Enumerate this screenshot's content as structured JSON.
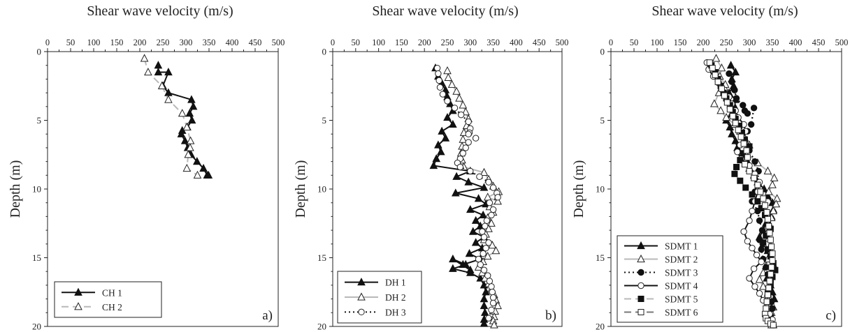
{
  "chart_data": [
    {
      "type": "line",
      "panel_label": "a)",
      "title": "Shear wave velocity (m/s)",
      "xlabel": "Shear wave velocity (m/s)",
      "ylabel": "Depth (m)",
      "xlim": [
        0,
        500
      ],
      "ylim": [
        0,
        20
      ],
      "y_inverted": true,
      "x_axis_position": "top",
      "xticks": [
        "0",
        "50",
        "100",
        "150",
        "200",
        "250",
        "300",
        "350",
        "400",
        "450",
        "500"
      ],
      "yticks": [
        "0",
        "5",
        "10",
        "15",
        "20"
      ],
      "legend_position": "bottom-left",
      "series": [
        {
          "name": "CH 1",
          "color": "#111111",
          "dash": "",
          "marker": "triangle-filled",
          "x": [
            240,
            240,
            262,
            250,
            262,
            312,
            316,
            308,
            313,
            303,
            292,
            290,
            298,
            304,
            311,
            324,
            338,
            346,
            349
          ],
          "y": [
            1.0,
            1.5,
            1.5,
            2.5,
            3.0,
            3.5,
            4.0,
            4.5,
            5.0,
            5.5,
            5.75,
            6.0,
            6.5,
            7.0,
            7.5,
            8.0,
            8.5,
            9.0,
            9.0
          ]
        },
        {
          "name": "CH 2",
          "color": "#b8b8b8",
          "dash": "10,6",
          "marker": "triangle-open",
          "x": [
            210,
            218,
            248,
            262,
            292,
            302,
            310,
            309,
            305,
            302,
            325
          ],
          "y": [
            0.5,
            1.5,
            2.5,
            3.5,
            4.5,
            5.5,
            6.5,
            7.0,
            7.5,
            8.5,
            9.0
          ]
        }
      ]
    },
    {
      "type": "line",
      "panel_label": "b)",
      "title": "Shear wave velocity (m/s)",
      "xlabel": "Shear wave velocity (m/s)",
      "ylabel": "Depth (m)",
      "xlim": [
        0,
        500
      ],
      "ylim": [
        0,
        20
      ],
      "y_inverted": true,
      "x_axis_position": "top",
      "xticks": [
        "0",
        "50",
        "100",
        "150",
        "200",
        "250",
        "300",
        "350",
        "400",
        "450",
        "500"
      ],
      "yticks": [
        "0",
        "5",
        "10",
        "15",
        "20"
      ],
      "legend_position": "bottom-left",
      "series": [
        {
          "name": "DH 1",
          "color": "#111111",
          "dash": "",
          "marker": "triangle-filled",
          "x": [
            224,
            230,
            238,
            246,
            250,
            256,
            262,
            250,
            262,
            238,
            246,
            230,
            236,
            226,
            220,
            300,
            270,
            296,
            330,
            268,
            318,
            334,
            300,
            328,
            312,
            322,
            306,
            330,
            312,
            326,
            298,
            322,
            284,
            300,
            262,
            290,
            262,
            300,
            322,
            330,
            334,
            330,
            330,
            332,
            330,
            330
          ],
          "y": [
            1.2,
            1.8,
            2.3,
            2.8,
            3.3,
            3.8,
            4.3,
            4.8,
            5.3,
            5.8,
            6.3,
            6.8,
            7.3,
            7.8,
            8.3,
            8.7,
            9.1,
            9.5,
            9.9,
            10.3,
            10.7,
            11.1,
            11.5,
            11.9,
            12.3,
            12.7,
            13.1,
            13.5,
            13.9,
            14.3,
            14.7,
            15.1,
            15.5,
            15.9,
            15.1,
            15.5,
            15.8,
            16.1,
            16.5,
            17.0,
            17.5,
            18.0,
            18.5,
            19.0,
            19.5,
            19.8
          ]
        },
        {
          "name": "DH 2",
          "color": "#b8b8b8",
          "dash": "",
          "marker": "triangle-open",
          "x": [
            250,
            252,
            260,
            270,
            276,
            284,
            290,
            296,
            292,
            286,
            284,
            282,
            280,
            282,
            286,
            330,
            340,
            350,
            362,
            338,
            360,
            342,
            350,
            338,
            346,
            340,
            334,
            330,
            348,
            356,
            338,
            328,
            318,
            326,
            332,
            340,
            346,
            352,
            356,
            360,
            354,
            352,
            350,
            352
          ],
          "y": [
            1.4,
            1.9,
            2.4,
            2.9,
            3.4,
            3.9,
            4.4,
            4.9,
            5.4,
            5.9,
            6.4,
            6.9,
            7.4,
            7.9,
            8.4,
            8.8,
            9.3,
            9.8,
            10.2,
            10.6,
            10.9,
            11.3,
            11.7,
            12.1,
            12.5,
            12.9,
            13.3,
            13.7,
            14.1,
            14.5,
            14.9,
            15.3,
            15.7,
            16.1,
            16.5,
            16.9,
            17.3,
            17.7,
            18.1,
            18.5,
            18.9,
            19.3,
            19.6,
            19.9
          ]
        },
        {
          "name": "DH 3",
          "color": "#111111",
          "dash": "2,4",
          "marker": "circle-open",
          "x": [
            228,
            230,
            232,
            234,
            240,
            250,
            266,
            280,
            296,
            300,
            298,
            296,
            312,
            296,
            290,
            284,
            278,
            272,
            278,
            300,
            320,
            340,
            350,
            358,
            360,
            342,
            350,
            346,
            336,
            332,
            326,
            330,
            340,
            334,
            328,
            318,
            322,
            330,
            338,
            342,
            346,
            348,
            350,
            350,
            346,
            340
          ],
          "y": [
            1.2,
            1.6,
            2.1,
            2.6,
            3.1,
            3.6,
            4.1,
            4.6,
            5.1,
            5.6,
            5.9,
            6.0,
            6.3,
            6.6,
            7.0,
            7.4,
            7.8,
            8.1,
            8.4,
            8.7,
            9.1,
            9.5,
            9.9,
            10.3,
            10.6,
            11.0,
            11.5,
            11.9,
            12.3,
            12.7,
            13.1,
            13.5,
            13.9,
            14.3,
            14.7,
            15.1,
            15.5,
            15.9,
            16.3,
            16.7,
            17.1,
            17.5,
            17.9,
            18.3,
            18.8,
            19.4
          ]
        }
      ]
    },
    {
      "type": "line",
      "panel_label": "c)",
      "title": "Shear wave velocity (m/s)",
      "xlabel": "Shear wave velocity (m/s)",
      "ylabel": "Depth (m)",
      "xlim": [
        0,
        500
      ],
      "ylim": [
        0,
        20
      ],
      "y_inverted": true,
      "x_axis_position": "top",
      "xticks": [
        "0",
        "50",
        "100",
        "150",
        "200",
        "250",
        "300",
        "350",
        "400",
        "450",
        "500"
      ],
      "yticks": [
        "0",
        "5",
        "10",
        "15",
        "20"
      ],
      "legend_position": "bottom-left",
      "series": [
        {
          "name": "SDMT 1",
          "color": "#111111",
          "dash": "",
          "marker": "triangle-filled",
          "x": [
            260,
            270,
            262,
            266,
            256,
            270,
            268,
            262,
            250,
            258,
            262,
            270,
            274,
            290,
            296,
            300,
            310,
            318,
            332,
            340,
            350,
            352,
            348,
            336,
            330,
            322,
            330,
            340,
            346,
            352,
            348,
            338,
            346,
            350,
            354,
            350,
            346,
            348,
            350,
            352
          ],
          "y": [
            1.0,
            1.5,
            2.0,
            2.5,
            3.0,
            3.5,
            4.0,
            4.5,
            5.0,
            5.5,
            6.0,
            6.5,
            7.0,
            7.5,
            8.0,
            8.5,
            9.0,
            9.5,
            10.0,
            10.5,
            11.0,
            11.5,
            12.0,
            12.5,
            13.0,
            13.5,
            14.0,
            14.5,
            15.0,
            15.5,
            16.0,
            16.5,
            17.0,
            17.5,
            18.0,
            18.5,
            19.0,
            19.5,
            19.8,
            19.9
          ]
        },
        {
          "name": "SDMT 2",
          "color": "#b8b8b8",
          "dash": "",
          "marker": "triangle-open",
          "x": [
            228,
            240,
            236,
            248,
            234,
            224,
            238,
            250,
            268,
            280,
            290,
            300,
            290,
            318,
            340,
            354,
            350,
            342,
            360,
            358,
            352,
            348,
            344,
            340,
            342,
            346,
            348,
            340,
            336,
            330,
            322,
            330,
            340,
            346,
            352,
            348,
            346,
            350,
            348
          ],
          "y": [
            0.5,
            1.2,
            1.8,
            2.4,
            3.0,
            3.8,
            4.3,
            4.8,
            5.3,
            5.8,
            6.3,
            6.8,
            7.3,
            8.1,
            8.7,
            9.2,
            9.7,
            10.2,
            10.7,
            11.1,
            11.6,
            12.1,
            12.6,
            13.1,
            13.6,
            14.1,
            14.6,
            15.1,
            15.6,
            16.1,
            16.6,
            17.1,
            17.6,
            18.1,
            18.6,
            19.0,
            19.4,
            19.7,
            19.9
          ]
        },
        {
          "name": "SDMT 3",
          "color": "#111111",
          "dash": "2,4",
          "marker": "circle-filled",
          "x": [
            256,
            262,
            268,
            272,
            286,
            290,
            296,
            310,
            304,
            296,
            290,
            300,
            312,
            320,
            318,
            312,
            306,
            318,
            322,
            328,
            322,
            326,
            330,
            336,
            340,
            346,
            342,
            340,
            348,
            350,
            346,
            344
          ],
          "y": [
            1.6,
            2.2,
            2.8,
            3.4,
            3.9,
            4.3,
            4.5,
            4.1,
            5.3,
            5.8,
            6.4,
            7.2,
            8.0,
            8.7,
            9.5,
            10.2,
            10.9,
            11.6,
            12.3,
            13.0,
            13.7,
            14.4,
            15.1,
            15.7,
            16.2,
            16.7,
            17.2,
            17.7,
            18.2,
            18.7,
            19.2,
            19.6
          ]
        },
        {
          "name": "SDMT 4",
          "color": "#111111",
          "dash": "",
          "marker": "circle-open",
          "x": [
            208,
            212,
            222,
            234,
            246,
            256,
            262,
            270,
            276,
            288,
            292,
            288,
            280,
            274,
            282,
            300,
            312,
            322,
            318,
            312,
            306,
            300,
            288,
            296,
            306,
            316,
            326,
            310,
            300,
            312,
            322,
            330,
            338,
            344,
            350,
            352
          ],
          "y": [
            0.8,
            1.3,
            1.8,
            2.3,
            2.8,
            3.3,
            3.8,
            4.3,
            4.8,
            5.3,
            5.8,
            6.3,
            6.8,
            7.3,
            7.8,
            8.3,
            8.9,
            9.5,
            10.2,
            10.9,
            11.6,
            12.3,
            13.1,
            13.8,
            14.3,
            14.8,
            15.3,
            15.8,
            16.5,
            17.1,
            17.6,
            18.1,
            18.6,
            19.1,
            19.5,
            19.9
          ]
        },
        {
          "name": "SDMT 5",
          "color": "#b8b8b8",
          "dash": "10,6",
          "marker": "square-filled",
          "x": [
            218,
            226,
            232,
            238,
            244,
            250,
            258,
            264,
            270,
            278,
            284,
            290,
            300,
            286,
            280,
            272,
            268,
            280,
            292,
            306,
            318,
            326,
            334,
            340,
            346,
            336,
            330,
            340,
            346,
            352,
            356,
            350,
            346,
            340
          ],
          "y": [
            1.0,
            1.5,
            2.0,
            2.5,
            3.0,
            3.4,
            3.9,
            4.4,
            4.9,
            5.4,
            5.9,
            6.4,
            6.9,
            7.4,
            7.9,
            8.4,
            8.9,
            9.4,
            9.9,
            10.4,
            10.9,
            11.4,
            11.9,
            12.4,
            12.9,
            13.4,
            13.9,
            14.4,
            14.9,
            15.4,
            15.9,
            16.4,
            17.0,
            17.6
          ]
        },
        {
          "name": "SDMT 6",
          "color": "#777777",
          "dash": "10,6",
          "marker": "square-open",
          "x": [
            214,
            220,
            226,
            232,
            240,
            246,
            252,
            258,
            264,
            270,
            276,
            282,
            288,
            294,
            296,
            290,
            300,
            310,
            318,
            324,
            330,
            334,
            338,
            340,
            342,
            344,
            346,
            348,
            350,
            350,
            348,
            346,
            344,
            342,
            340,
            338,
            336,
            334,
            336,
            340,
            346,
            352
          ],
          "y": [
            0.8,
            1.2,
            1.7,
            2.2,
            2.7,
            3.2,
            3.7,
            4.2,
            4.7,
            5.2,
            5.7,
            6.2,
            6.7,
            7.2,
            7.7,
            8.2,
            8.7,
            9.2,
            9.7,
            10.2,
            10.7,
            11.2,
            11.7,
            12.2,
            12.7,
            13.2,
            13.7,
            14.2,
            14.7,
            15.2,
            15.7,
            16.2,
            16.7,
            17.2,
            17.7,
            18.2,
            18.7,
            19.1,
            19.4,
            19.6,
            19.8,
            19.9
          ]
        }
      ]
    }
  ]
}
